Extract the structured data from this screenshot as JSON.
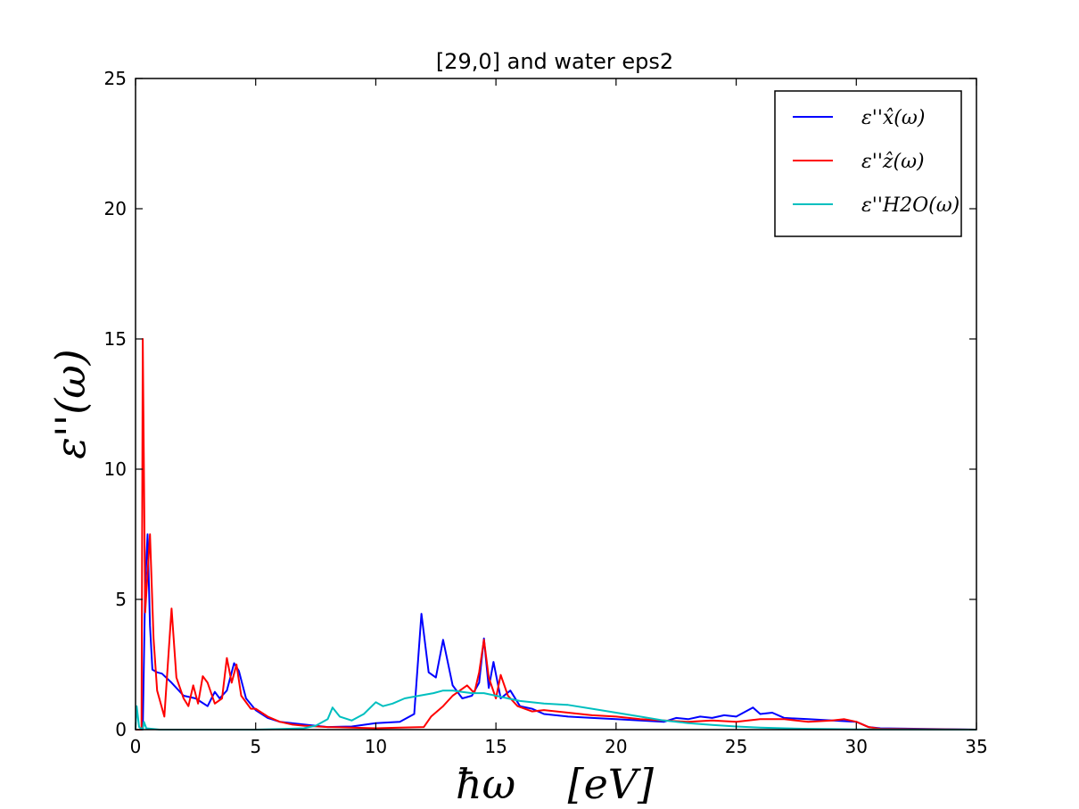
{
  "chart_data": {
    "type": "line",
    "title": "[29,0] and water eps2",
    "xlabel": "ħω    [eV]",
    "ylabel": "ε''(ω)",
    "xlim": [
      0,
      35
    ],
    "ylim": [
      0,
      25
    ],
    "xticks": [
      0,
      5,
      10,
      15,
      20,
      25,
      30,
      35
    ],
    "yticks": [
      0,
      5,
      10,
      15,
      20,
      25
    ],
    "grid": false,
    "legend_position": "top-right",
    "series": [
      {
        "name": "ε''x̂(ω)",
        "color": "#0000ff",
        "points": [
          [
            0,
            0
          ],
          [
            0.3,
            0
          ],
          [
            0.4,
            5.5
          ],
          [
            0.5,
            7.5
          ],
          [
            0.6,
            4.0
          ],
          [
            0.7,
            2.3
          ],
          [
            0.9,
            2.2
          ],
          [
            1.1,
            2.15
          ],
          [
            1.5,
            1.8
          ],
          [
            2.0,
            1.3
          ],
          [
            2.5,
            1.2
          ],
          [
            3.0,
            0.9
          ],
          [
            3.3,
            1.45
          ],
          [
            3.5,
            1.2
          ],
          [
            3.8,
            1.5
          ],
          [
            4.1,
            2.55
          ],
          [
            4.3,
            2.25
          ],
          [
            4.6,
            1.2
          ],
          [
            5.0,
            0.75
          ],
          [
            5.5,
            0.45
          ],
          [
            6.0,
            0.3
          ],
          [
            7.0,
            0.2
          ],
          [
            8.0,
            0.1
          ],
          [
            9.0,
            0.12
          ],
          [
            10.0,
            0.25
          ],
          [
            11.0,
            0.3
          ],
          [
            11.6,
            0.6
          ],
          [
            11.9,
            4.45
          ],
          [
            12.2,
            2.2
          ],
          [
            12.5,
            2.0
          ],
          [
            12.8,
            3.45
          ],
          [
            13.2,
            1.7
          ],
          [
            13.6,
            1.2
          ],
          [
            14.0,
            1.3
          ],
          [
            14.3,
            1.8
          ],
          [
            14.5,
            3.5
          ],
          [
            14.7,
            1.6
          ],
          [
            14.9,
            2.6
          ],
          [
            15.2,
            1.2
          ],
          [
            15.6,
            1.5
          ],
          [
            16.0,
            0.9
          ],
          [
            16.5,
            0.8
          ],
          [
            17.0,
            0.6
          ],
          [
            18.0,
            0.5
          ],
          [
            19.0,
            0.45
          ],
          [
            20.0,
            0.4
          ],
          [
            21.0,
            0.35
          ],
          [
            22.0,
            0.3
          ],
          [
            22.5,
            0.45
          ],
          [
            23.0,
            0.4
          ],
          [
            23.5,
            0.5
          ],
          [
            24.0,
            0.45
          ],
          [
            24.5,
            0.55
          ],
          [
            25.0,
            0.5
          ],
          [
            25.7,
            0.85
          ],
          [
            26.0,
            0.6
          ],
          [
            26.5,
            0.65
          ],
          [
            27.0,
            0.45
          ],
          [
            28.0,
            0.4
          ],
          [
            29.0,
            0.35
          ],
          [
            30.0,
            0.3
          ],
          [
            30.5,
            0.1
          ],
          [
            31.0,
            0.05
          ],
          [
            35.0,
            0.0
          ]
        ]
      },
      {
        "name": "ε''ẑ(ω)",
        "color": "#ff0000",
        "points": [
          [
            0,
            0
          ],
          [
            0.25,
            0
          ],
          [
            0.3,
            15.0
          ],
          [
            0.4,
            4.5
          ],
          [
            0.6,
            7.5
          ],
          [
            0.75,
            3.5
          ],
          [
            0.9,
            1.5
          ],
          [
            1.2,
            0.5
          ],
          [
            1.5,
            4.65
          ],
          [
            1.7,
            2.0
          ],
          [
            2.0,
            1.2
          ],
          [
            2.2,
            0.9
          ],
          [
            2.4,
            1.7
          ],
          [
            2.6,
            1.0
          ],
          [
            2.8,
            2.05
          ],
          [
            3.0,
            1.8
          ],
          [
            3.3,
            1.0
          ],
          [
            3.6,
            1.2
          ],
          [
            3.8,
            2.75
          ],
          [
            4.0,
            1.8
          ],
          [
            4.2,
            2.5
          ],
          [
            4.4,
            1.3
          ],
          [
            4.8,
            0.8
          ],
          [
            5.0,
            0.8
          ],
          [
            5.5,
            0.5
          ],
          [
            6.0,
            0.3
          ],
          [
            6.5,
            0.2
          ],
          [
            7.0,
            0.15
          ],
          [
            8.0,
            0.1
          ],
          [
            9.0,
            0.08
          ],
          [
            10.0,
            0.05
          ],
          [
            11.0,
            0.08
          ],
          [
            12.0,
            0.1
          ],
          [
            12.3,
            0.5
          ],
          [
            12.8,
            0.9
          ],
          [
            13.2,
            1.3
          ],
          [
            13.5,
            1.5
          ],
          [
            13.8,
            1.7
          ],
          [
            14.1,
            1.4
          ],
          [
            14.3,
            2.2
          ],
          [
            14.5,
            3.45
          ],
          [
            14.7,
            2.0
          ],
          [
            15.0,
            1.2
          ],
          [
            15.2,
            2.1
          ],
          [
            15.5,
            1.3
          ],
          [
            15.9,
            0.9
          ],
          [
            16.5,
            0.7
          ],
          [
            17.0,
            0.75
          ],
          [
            18.0,
            0.65
          ],
          [
            19.0,
            0.55
          ],
          [
            20.0,
            0.5
          ],
          [
            21.0,
            0.4
          ],
          [
            22.0,
            0.35
          ],
          [
            23.0,
            0.3
          ],
          [
            24.0,
            0.35
          ],
          [
            25.0,
            0.3
          ],
          [
            26.0,
            0.4
          ],
          [
            27.0,
            0.4
          ],
          [
            28.0,
            0.3
          ],
          [
            29.0,
            0.35
          ],
          [
            29.5,
            0.4
          ],
          [
            30.0,
            0.3
          ],
          [
            30.5,
            0.1
          ],
          [
            31.0,
            0.03
          ],
          [
            35.0,
            0.0
          ]
        ]
      },
      {
        "name": "ε''H2O(ω)",
        "color": "#00bfbf",
        "points": [
          [
            0,
            0
          ],
          [
            0.05,
            0.9
          ],
          [
            0.15,
            0.1
          ],
          [
            0.3,
            0.0
          ],
          [
            0.35,
            0.3
          ],
          [
            0.45,
            0.05
          ],
          [
            1.0,
            0.0
          ],
          [
            5.0,
            0.0
          ],
          [
            6.0,
            0.02
          ],
          [
            7.0,
            0.05
          ],
          [
            7.5,
            0.15
          ],
          [
            8.0,
            0.4
          ],
          [
            8.2,
            0.85
          ],
          [
            8.5,
            0.5
          ],
          [
            9.0,
            0.35
          ],
          [
            9.5,
            0.6
          ],
          [
            10.0,
            1.05
          ],
          [
            10.3,
            0.9
          ],
          [
            10.7,
            1.0
          ],
          [
            11.2,
            1.2
          ],
          [
            11.8,
            1.3
          ],
          [
            12.4,
            1.4
          ],
          [
            12.8,
            1.5
          ],
          [
            13.2,
            1.5
          ],
          [
            13.6,
            1.45
          ],
          [
            14.0,
            1.4
          ],
          [
            14.5,
            1.4
          ],
          [
            15.0,
            1.3
          ],
          [
            15.5,
            1.2
          ],
          [
            16.0,
            1.1
          ],
          [
            17.0,
            1.0
          ],
          [
            18.0,
            0.95
          ],
          [
            19.0,
            0.8
          ],
          [
            20.0,
            0.65
          ],
          [
            21.0,
            0.5
          ],
          [
            22.0,
            0.35
          ],
          [
            23.0,
            0.25
          ],
          [
            24.0,
            0.18
          ],
          [
            25.0,
            0.12
          ],
          [
            26.0,
            0.08
          ],
          [
            27.0,
            0.05
          ],
          [
            28.0,
            0.03
          ],
          [
            29.0,
            0.02
          ],
          [
            30.0,
            0.01
          ],
          [
            35.0,
            0.0
          ]
        ]
      }
    ]
  }
}
